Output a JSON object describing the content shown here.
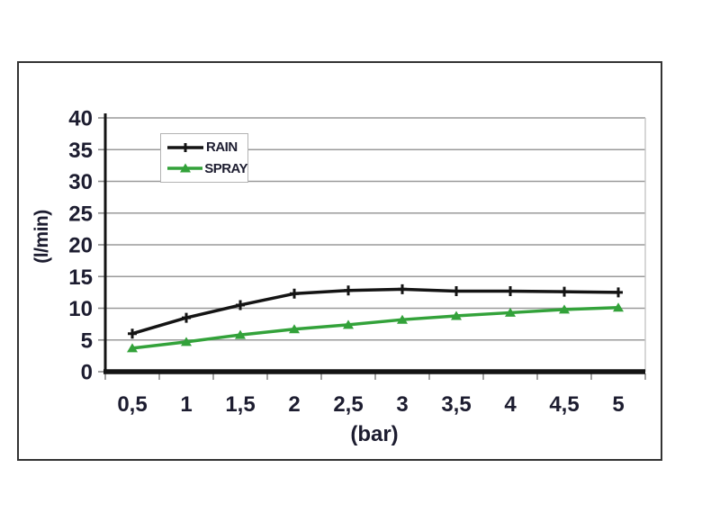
{
  "chart_data": {
    "type": "line",
    "title": "",
    "xlabel": "(bar)",
    "ylabel": "(l/min)",
    "x": [
      0.5,
      1,
      1.5,
      2,
      2.5,
      3,
      3.5,
      4,
      4.5,
      5
    ],
    "x_tick_labels": [
      "0,5",
      "1",
      "1,5",
      "2",
      "2,5",
      "3",
      "3,5",
      "4",
      "4,5",
      "5"
    ],
    "y_ticks": [
      0,
      5,
      10,
      15,
      20,
      25,
      30,
      35,
      40
    ],
    "ylim": [
      0,
      40
    ],
    "grid": true,
    "legend_position": "top-left-inside",
    "series": [
      {
        "name": "RAIN",
        "color": "#141414",
        "marker": "plus",
        "values": [
          6,
          8.5,
          10.5,
          12.3,
          12.8,
          13,
          12.7,
          12.7,
          12.6,
          12.5
        ]
      },
      {
        "name": "SPRAY",
        "color": "#33a23a",
        "marker": "triangle-up",
        "values": [
          3.7,
          4.7,
          5.8,
          6.7,
          7.4,
          8.2,
          8.8,
          9.3,
          9.8,
          10.1
        ]
      }
    ]
  }
}
